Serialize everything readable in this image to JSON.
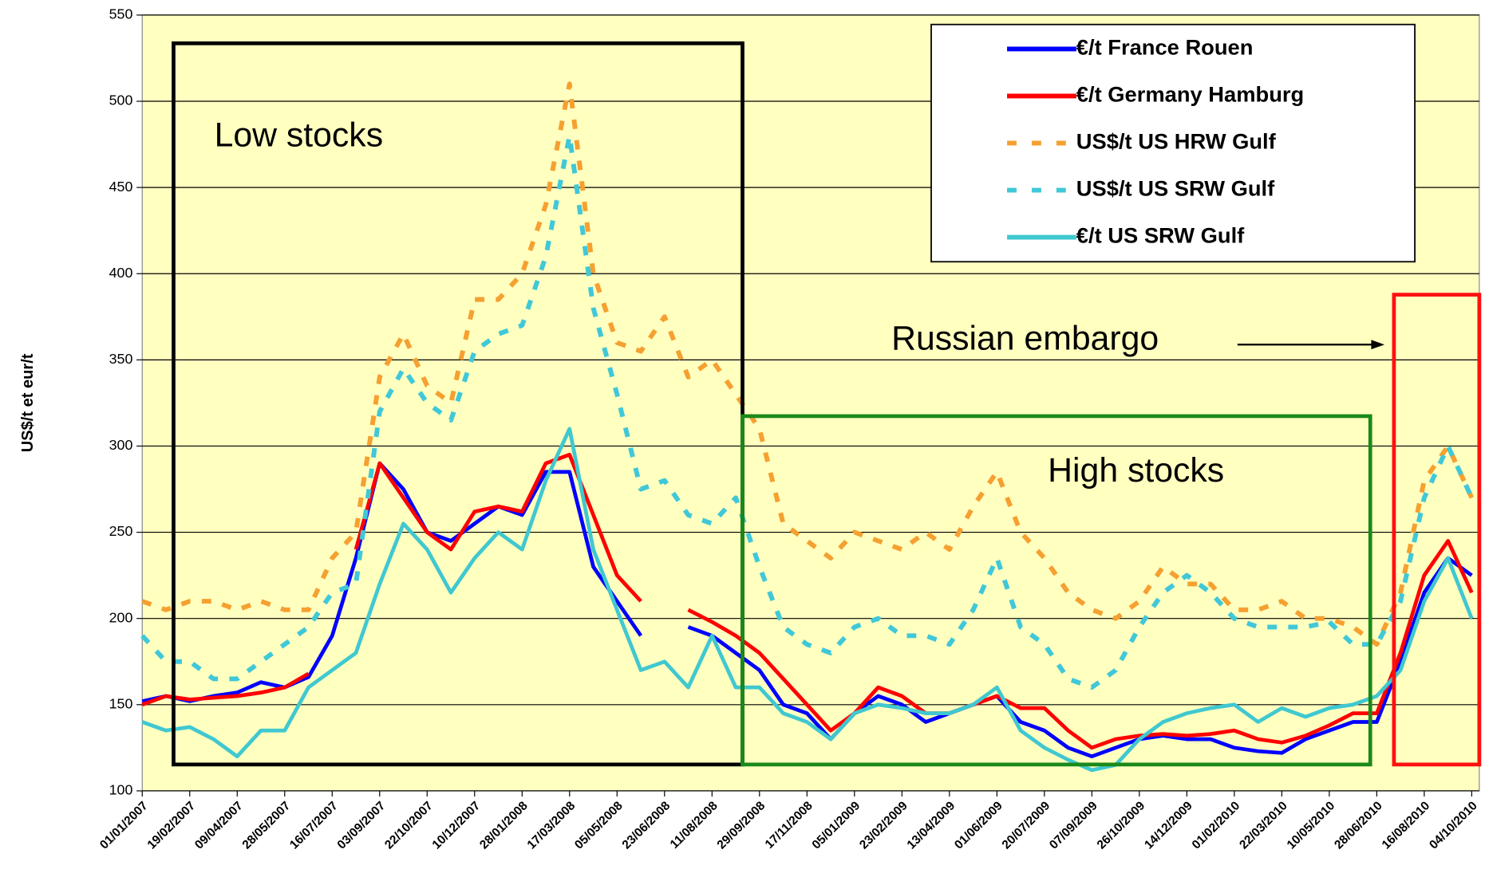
{
  "chart_data": {
    "type": "line",
    "y_label": "US$/t et eur/t",
    "annotations": [
      "Low stocks",
      "High stocks",
      "Russian embargo"
    ],
    "categories": [
      "01/01/2007",
      null,
      "19/02/2007",
      null,
      "09/04/2007",
      null,
      "28/05/2007",
      null,
      "16/07/2007",
      null,
      "03/09/2007",
      null,
      "22/10/2007",
      null,
      "10/12/2007",
      null,
      "28/01/2008",
      null,
      "17/03/2008",
      null,
      "05/05/2008",
      null,
      "23/06/2008",
      null,
      "11/08/2008",
      null,
      "29/09/2008",
      null,
      "17/11/2008",
      null,
      "05/01/2009",
      null,
      "23/02/2009",
      null,
      "13/04/2009",
      null,
      "01/06/2009",
      null,
      "20/07/2009",
      null,
      "07/09/2009",
      null,
      "26/10/2009",
      null,
      "14/12/2009",
      null,
      "01/02/2010",
      null,
      "22/03/2010",
      null,
      "10/05/2010",
      null,
      "28/06/2010",
      null,
      "16/08/2010",
      null,
      "04/10/2010"
    ],
    "ylim": [
      100,
      550
    ],
    "yticks": [
      100,
      150,
      200,
      250,
      300,
      350,
      400,
      450,
      500,
      550
    ],
    "grid": true,
    "series": [
      {
        "name": "€/t France Rouen",
        "color": "#0000ff",
        "dashed": false,
        "values": [
          152,
          155,
          152,
          155,
          157,
          163,
          160,
          166,
          190,
          235,
          290,
          275,
          250,
          245,
          255,
          265,
          260,
          285,
          285,
          230,
          210,
          190,
          null,
          195,
          190,
          180,
          170,
          150,
          145,
          130,
          145,
          155,
          150,
          140,
          145,
          150,
          155,
          140,
          135,
          125,
          120,
          125,
          130,
          132,
          130,
          130,
          125,
          123,
          122,
          130,
          135,
          140,
          140,
          175,
          215,
          235,
          225
        ]
      },
      {
        "name": "€/t Germany Hamburg",
        "color": "#ff0000",
        "dashed": false,
        "values": [
          150,
          155,
          153,
          154,
          155,
          157,
          160,
          168,
          null,
          240,
          290,
          270,
          250,
          240,
          262,
          265,
          262,
          290,
          295,
          260,
          225,
          210,
          null,
          205,
          198,
          190,
          180,
          165,
          150,
          135,
          145,
          160,
          155,
          145,
          145,
          150,
          155,
          148,
          148,
          135,
          125,
          130,
          132,
          133,
          132,
          133,
          135,
          130,
          128,
          132,
          138,
          145,
          145,
          180,
          225,
          245,
          215
        ]
      },
      {
        "name": "US$/t US HRW Gulf",
        "color": "#f5a030",
        "dashed": true,
        "values": [
          210,
          205,
          210,
          210,
          205,
          210,
          205,
          205,
          235,
          250,
          340,
          365,
          335,
          325,
          385,
          385,
          400,
          440,
          510,
          400,
          360,
          355,
          375,
          340,
          350,
          330,
          310,
          255,
          245,
          235,
          250,
          245,
          240,
          250,
          240,
          265,
          285,
          250,
          235,
          215,
          205,
          200,
          210,
          230,
          220,
          220,
          205,
          205,
          210,
          200,
          200,
          195,
          185,
          215,
          280,
          300,
          270
        ]
      },
      {
        "name": "US$/t US SRW Gulf",
        "color": "#40c8d8",
        "dashed": true,
        "values": [
          190,
          175,
          175,
          165,
          165,
          175,
          185,
          195,
          215,
          220,
          320,
          345,
          325,
          315,
          355,
          365,
          370,
          410,
          480,
          380,
          330,
          275,
          280,
          260,
          255,
          270,
          230,
          195,
          185,
          180,
          195,
          200,
          190,
          190,
          185,
          205,
          235,
          195,
          185,
          165,
          160,
          170,
          195,
          215,
          225,
          215,
          200,
          195,
          195,
          195,
          198,
          185,
          185,
          210,
          270,
          300,
          270
        ]
      },
      {
        "name": "€/t US SRW Gulf",
        "color": "#40c8d0",
        "dashed": false,
        "values": [
          140,
          135,
          137,
          130,
          120,
          135,
          135,
          160,
          170,
          180,
          220,
          255,
          240,
          215,
          235,
          250,
          240,
          280,
          310,
          240,
          205,
          170,
          175,
          160,
          190,
          160,
          160,
          145,
          140,
          130,
          145,
          150,
          148,
          145,
          145,
          150,
          160,
          135,
          125,
          118,
          112,
          115,
          130,
          140,
          145,
          148,
          150,
          140,
          148,
          143,
          148,
          150,
          155,
          170,
          210,
          235,
          200
        ]
      }
    ]
  }
}
